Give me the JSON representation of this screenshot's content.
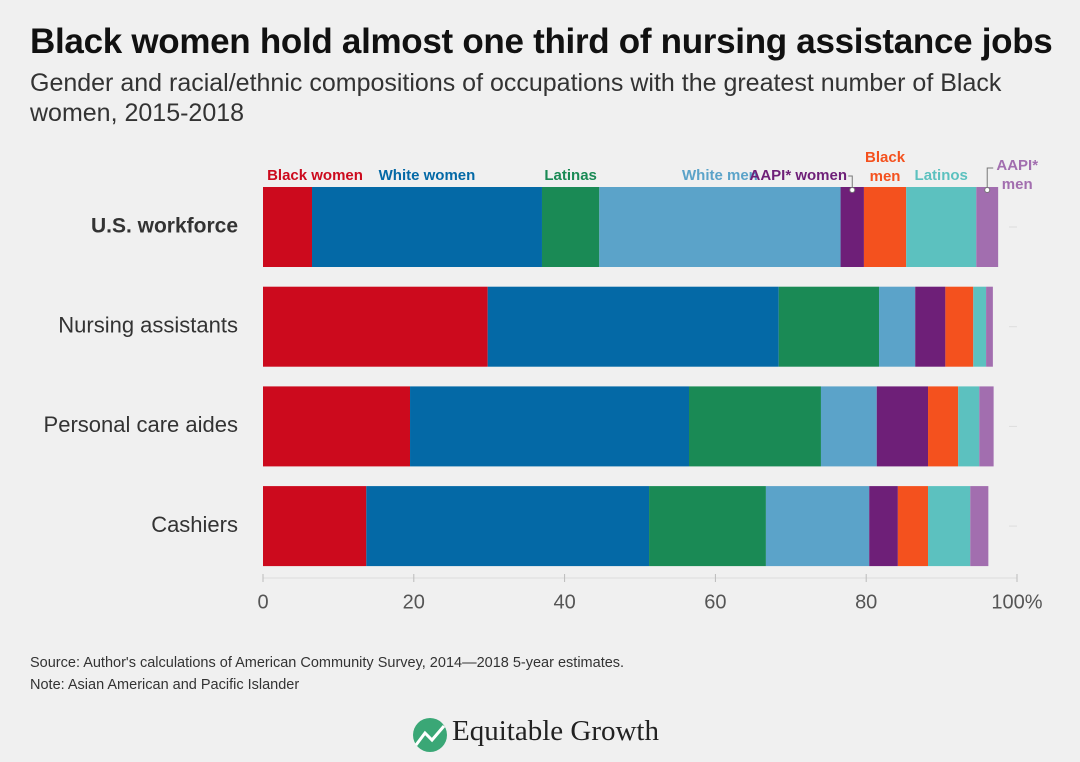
{
  "chart_data": {
    "type": "stacked_bar_horizontal",
    "title": "Black women hold almost one third of nursing assistance jobs",
    "subtitle": "Gender and racial/ethnic compositions of occupations with the greatest number of Black women, 2015-2018",
    "categories": [
      "U.S. workforce",
      "Nursing assistants",
      "Personal care aides",
      "Cashiers"
    ],
    "series": [
      {
        "name": "Black women",
        "color": "#cc0a1d",
        "values": [
          6.5,
          29.8,
          19.5,
          13.7
        ]
      },
      {
        "name": "White women",
        "color": "#0469a6",
        "values": [
          30.5,
          38.6,
          37.0,
          37.5
        ]
      },
      {
        "name": "Latinas",
        "color": "#1a8a55",
        "values": [
          7.6,
          13.3,
          17.5,
          15.5
        ]
      },
      {
        "name": "White men",
        "color": "#5ba3c9",
        "values": [
          32.0,
          4.8,
          7.4,
          13.7
        ]
      },
      {
        "name": "AAPI* women",
        "color": "#6e1f78",
        "values": [
          3.1,
          4.0,
          6.8,
          3.8
        ]
      },
      {
        "name": "Black men",
        "color": "#f4511e",
        "values": [
          5.6,
          3.7,
          4.0,
          4.0
        ]
      },
      {
        "name": "Latinos",
        "color": "#5cc1bf",
        "values": [
          9.3,
          1.7,
          2.8,
          5.6
        ]
      },
      {
        "name": "AAPI* men",
        "color": "#a26eaf",
        "values": [
          2.9,
          0.9,
          1.9,
          2.4
        ]
      }
    ],
    "xlim": [
      0,
      100
    ],
    "xticks": [
      0,
      20,
      40,
      60,
      80,
      {
        "value": 100,
        "label": "100%"
      }
    ]
  },
  "footer": {
    "source": "Source: Author's calculations of American Community Survey, 2014—2018 5-year estimates.",
    "note": "Note: Asian American and Pacific Islander",
    "logo": "Equitable Growth"
  }
}
